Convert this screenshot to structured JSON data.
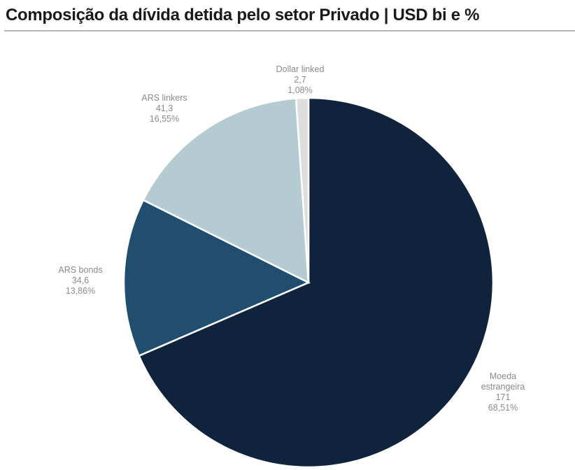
{
  "chart_data": {
    "type": "pie",
    "title": "Composição da dívida detida pelo setor Privado | USD bi e %",
    "slices": [
      {
        "label": "Moeda estrangeira",
        "value": 171,
        "value_label": "171",
        "percent_label": "68,51%",
        "color": "#10233d"
      },
      {
        "label": "ARS bonds",
        "value": 34.6,
        "value_label": "34,6",
        "percent_label": "13,86%",
        "color": "#214e6f"
      },
      {
        "label": "ARS linkers",
        "value": 41.3,
        "value_label": "41,3",
        "percent_label": "16,55%",
        "color": "#b3cbd1"
      },
      {
        "label": "Dollar linked",
        "value": 2.7,
        "value_label": "2,7",
        "percent_label": "1,08%",
        "color": "#dedede"
      }
    ]
  }
}
